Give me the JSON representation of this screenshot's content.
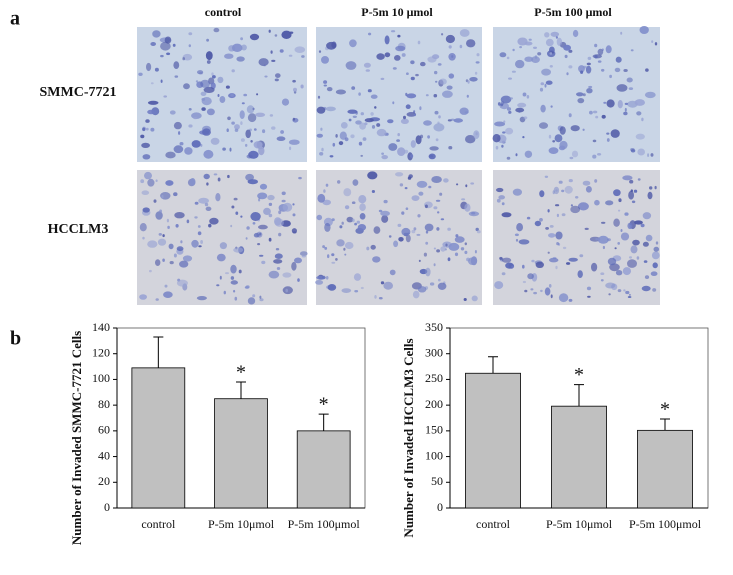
{
  "panel_a": {
    "label": "a",
    "columns": [
      "control",
      "P-5m 10 μmol",
      "P-5m 100 μmol"
    ],
    "rows": [
      "SMMC-7721",
      "HCCLM3"
    ]
  },
  "panel_b": {
    "label": "b"
  },
  "chart_data": [
    {
      "type": "bar",
      "y_label": "Number of Invaded SMMC-7721 Cells",
      "categories": [
        "control",
        "P-5m 10μmol",
        "P-5m 100μmol"
      ],
      "values": [
        109,
        85,
        60
      ],
      "errors": [
        24,
        13,
        13
      ],
      "annotations": [
        null,
        "*",
        "*"
      ],
      "color": "#c0c0c0",
      "ylim": [
        0,
        140
      ],
      "yticks": [
        0,
        20,
        40,
        60,
        80,
        100,
        120,
        140
      ]
    },
    {
      "type": "bar",
      "y_label": "Number of Invaded HCCLM3 Cells",
      "categories": [
        "control",
        "P-5m 10μmol",
        "P-5m 100μmol"
      ],
      "values": [
        262,
        198,
        151
      ],
      "errors": [
        32,
        42,
        22
      ],
      "annotations": [
        null,
        "*",
        "*"
      ],
      "color": "#c0c0c0",
      "ylim": [
        0,
        350
      ],
      "yticks": [
        0,
        50,
        100,
        150,
        200,
        250,
        300,
        350
      ]
    }
  ]
}
